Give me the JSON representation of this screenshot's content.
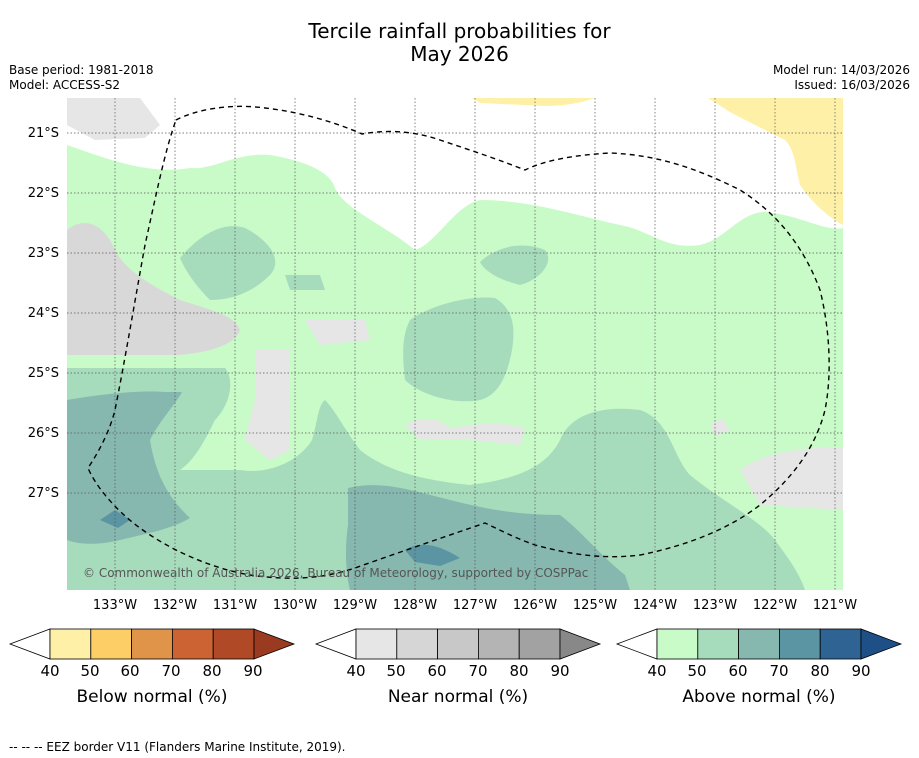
{
  "title": {
    "line1": "Tercile rainfall probabilities for",
    "line2": "May 2026"
  },
  "meta": {
    "base_period": "Base period: 1981-2018",
    "model": "Model: ACCESS-S2",
    "model_run": "Model run: 14/03/2026",
    "issued": "Issued: 16/03/2026"
  },
  "map": {
    "lat_labels": [
      "21°S",
      "22°S",
      "23°S",
      "24°S",
      "25°S",
      "26°S",
      "27°S"
    ],
    "lon_labels": [
      "133°W",
      "132°W",
      "131°W",
      "130°W",
      "129°W",
      "128°W",
      "127°W",
      "126°W",
      "125°W",
      "124°W",
      "123°W",
      "122°W",
      "121°W"
    ],
    "copyright": "© Commonwealth of Australia 2026, Bureau of Meteorology, supported by COSPPac"
  },
  "colorbars": [
    {
      "title": "Below normal (%)",
      "ticks": [
        "40",
        "50",
        "60",
        "70",
        "80",
        "90"
      ],
      "colors": [
        "#fff0a8",
        "#fdce66",
        "#e0944a",
        "#cb6332",
        "#b04a26",
        "#9a3a20"
      ]
    },
    {
      "title": "Near normal (%)",
      "ticks": [
        "40",
        "50",
        "60",
        "70",
        "80",
        "90"
      ],
      "colors": [
        "#e6e6e6",
        "#d6d6d6",
        "#c8c8c8",
        "#b4b4b4",
        "#a2a2a2",
        "#888888"
      ]
    },
    {
      "title": "Above normal (%)",
      "ticks": [
        "40",
        "50",
        "60",
        "70",
        "80",
        "90"
      ],
      "colors": [
        "#c9fbc8",
        "#a6dcbc",
        "#86b8af",
        "#5b94a2",
        "#2f6394",
        "#1e4f86"
      ]
    }
  ],
  "footer": "--  --  -- EEZ border V11 (Flanders Marine Institute, 2019)."
}
